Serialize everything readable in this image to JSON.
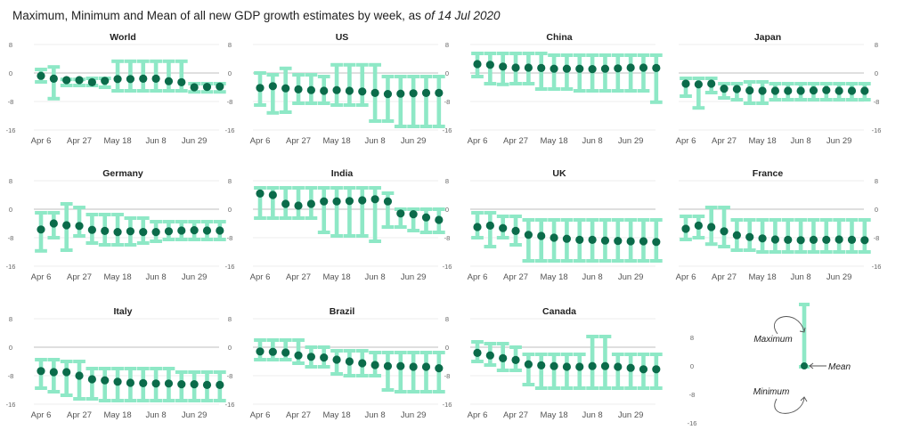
{
  "title": {
    "main": "Maximum, Minimum and Mean of all new GDP growth estimates by week, as ",
    "asof": "of 14 Jul 2020"
  },
  "colors": {
    "range": "#8ee8c6",
    "mean": "#0b6b4a",
    "grid": "#dddddd",
    "axis": "#aaaaaa"
  },
  "legend": {
    "maximum": "Maximum",
    "minimum": "Minimum",
    "mean": "Mean"
  },
  "chart_data": {
    "type": "scatter",
    "description_of_series": [
      "Mean",
      "Maximum",
      "Minimum"
    ],
    "ylim": [
      -16,
      8
    ],
    "yticks": [
      "8",
      "0",
      "-8",
      "-16"
    ],
    "xticks": [
      "Apr 6",
      "Apr 27",
      "May 18",
      "Jun 8",
      "Jun 29"
    ],
    "x": [
      "Apr 6",
      "Apr 13",
      "Apr 20",
      "Apr 27",
      "May 4",
      "May 11",
      "May 18",
      "May 25",
      "Jun 1",
      "Jun 8",
      "Jun 15",
      "Jun 22",
      "Jun 29",
      "Jul 6",
      "Jul 13"
    ],
    "panels": [
      {
        "name": "World",
        "mean": [
          -0.8,
          -1.6,
          -2.0,
          -2.0,
          -2.6,
          -2.2,
          -1.7,
          -1.7,
          -1.6,
          -1.6,
          -2.3,
          -2.6,
          -4.0,
          -3.9,
          -3.8
        ],
        "max": [
          1.0,
          1.7,
          -1.8,
          -1.8,
          -1.5,
          -1.5,
          3.3,
          3.3,
          3.3,
          3.3,
          3.3,
          3.3,
          -3.0,
          -3.0,
          -3.0
        ],
        "min": [
          -2.5,
          -7.2,
          -3.5,
          -3.5,
          -3.5,
          -4.0,
          -5.0,
          -5.0,
          -5.0,
          -5.0,
          -5.0,
          -5.0,
          -5.3,
          -5.3,
          -5.3
        ]
      },
      {
        "name": "US",
        "mean": [
          -4.2,
          -3.7,
          -4.3,
          -4.6,
          -4.8,
          -5.0,
          -4.8,
          -5.0,
          -5.2,
          -5.6,
          -5.9,
          -5.8,
          -5.7,
          -5.6,
          -5.6
        ],
        "max": [
          0.0,
          -0.5,
          1.3,
          -0.5,
          -0.5,
          -1.0,
          2.3,
          2.3,
          2.3,
          2.3,
          -1.0,
          -1.0,
          -1.0,
          -1.0,
          -1.0
        ],
        "min": [
          -9.0,
          -11.2,
          -11.0,
          -8.5,
          -8.5,
          -8.5,
          -9.0,
          -9.0,
          -9.0,
          -13.5,
          -13.5,
          -15.0,
          -15.0,
          -15.0,
          -15.0
        ]
      },
      {
        "name": "China",
        "mean": [
          2.5,
          2.3,
          1.8,
          1.5,
          1.5,
          1.4,
          1.2,
          1.2,
          1.2,
          1.1,
          1.2,
          1.3,
          1.5,
          1.5,
          1.4
        ],
        "max": [
          5.5,
          5.5,
          5.5,
          5.5,
          5.5,
          5.5,
          5.0,
          5.0,
          5.0,
          5.0,
          5.0,
          5.0,
          5.0,
          5.0,
          5.0
        ],
        "min": [
          -1.0,
          -3.0,
          -3.2,
          -3.0,
          -3.0,
          -4.5,
          -4.5,
          -4.5,
          -5.0,
          -5.0,
          -5.0,
          -5.0,
          -5.0,
          -5.0,
          -8.2
        ]
      },
      {
        "name": "Japan",
        "mean": [
          -3.0,
          -3.2,
          -3.0,
          -4.4,
          -4.5,
          -4.9,
          -5.0,
          -5.0,
          -5.0,
          -5.0,
          -4.9,
          -4.8,
          -5.0,
          -5.0,
          -5.0
        ],
        "max": [
          -1.5,
          -1.5,
          -1.5,
          -3.0,
          -3.0,
          -2.5,
          -2.5,
          -3.0,
          -3.0,
          -3.0,
          -3.0,
          -3.0,
          -3.0,
          -3.0,
          -3.0
        ],
        "min": [
          -6.5,
          -9.8,
          -5.5,
          -7.0,
          -7.5,
          -8.5,
          -8.5,
          -7.5,
          -7.5,
          -7.5,
          -7.5,
          -7.5,
          -7.5,
          -7.5,
          -7.5
        ]
      },
      {
        "name": "Germany",
        "mean": [
          -5.7,
          -4.0,
          -4.5,
          -4.7,
          -5.8,
          -6.1,
          -6.4,
          -6.2,
          -6.4,
          -6.4,
          -6.2,
          -6.0,
          -5.9,
          -6.0,
          -6.0
        ],
        "max": [
          -1.0,
          -1.0,
          1.5,
          0.5,
          -1.5,
          -1.5,
          -1.5,
          -2.5,
          -2.5,
          -3.5,
          -3.5,
          -3.5,
          -3.5,
          -3.5,
          -3.5
        ],
        "min": [
          -11.7,
          -8.0,
          -11.5,
          -7.5,
          -9.5,
          -10.0,
          -10.0,
          -10.0,
          -9.5,
          -9.0,
          -8.5,
          -8.5,
          -8.5,
          -8.5,
          -8.5
        ]
      },
      {
        "name": "India",
        "mean": [
          4.4,
          4.0,
          1.5,
          1.0,
          1.5,
          2.2,
          2.2,
          2.3,
          2.5,
          2.8,
          2.2,
          -1.2,
          -1.4,
          -2.3,
          -3.0
        ],
        "max": [
          6.0,
          6.0,
          6.0,
          6.0,
          6.0,
          6.0,
          6.0,
          6.0,
          6.0,
          6.0,
          4.5,
          0.0,
          0.0,
          0.0,
          0.0
        ],
        "min": [
          -2.5,
          -2.5,
          -2.5,
          -2.5,
          -2.5,
          -6.5,
          -7.5,
          -7.5,
          -7.5,
          -9.0,
          -5.0,
          -5.0,
          -6.0,
          -6.5,
          -6.5
        ]
      },
      {
        "name": "UK",
        "mean": [
          -5.0,
          -4.6,
          -5.3,
          -6.1,
          -7.2,
          -7.5,
          -8.0,
          -8.3,
          -8.6,
          -8.6,
          -8.8,
          -8.9,
          -9.0,
          -9.0,
          -9.2
        ],
        "max": [
          -1.0,
          -1.0,
          -2.0,
          -2.0,
          -3.0,
          -3.0,
          -3.0,
          -3.0,
          -3.0,
          -3.0,
          -3.0,
          -3.0,
          -3.0,
          -3.0,
          -3.0
        ],
        "min": [
          -8.0,
          -10.5,
          -8.0,
          -10.0,
          -14.5,
          -14.5,
          -14.5,
          -14.5,
          -14.5,
          -14.5,
          -14.5,
          -14.5,
          -14.5,
          -14.5,
          -14.5
        ]
      },
      {
        "name": "France",
        "mean": [
          -5.5,
          -4.6,
          -5.0,
          -6.2,
          -7.3,
          -7.8,
          -8.2,
          -8.5,
          -8.6,
          -8.7,
          -8.6,
          -8.6,
          -8.5,
          -8.6,
          -8.7
        ],
        "max": [
          -2.0,
          -2.0,
          0.5,
          0.5,
          -3.0,
          -3.0,
          -3.0,
          -3.0,
          -3.0,
          -3.0,
          -3.0,
          -3.0,
          -3.0,
          -3.0,
          -3.0
        ],
        "min": [
          -8.5,
          -8.0,
          -9.8,
          -10.5,
          -11.5,
          -11.5,
          -12.0,
          -12.0,
          -12.0,
          -12.0,
          -12.0,
          -12.0,
          -12.0,
          -12.0,
          -12.0
        ]
      },
      {
        "name": "Italy",
        "mean": [
          -6.7,
          -7.0,
          -7.0,
          -8.0,
          -9.0,
          -9.3,
          -9.7,
          -10.0,
          -10.1,
          -10.2,
          -10.2,
          -10.4,
          -10.4,
          -10.6,
          -10.6
        ],
        "max": [
          -3.5,
          -3.5,
          -4.0,
          -4.0,
          -6.0,
          -6.0,
          -6.0,
          -6.0,
          -6.0,
          -6.0,
          -6.0,
          -7.0,
          -7.0,
          -7.0,
          -7.0
        ],
        "min": [
          -11.5,
          -12.5,
          -13.5,
          -14.5,
          -14.5,
          -15.0,
          -15.0,
          -15.0,
          -15.0,
          -15.0,
          -15.0,
          -15.0,
          -15.0,
          -15.0,
          -15.0
        ]
      },
      {
        "name": "Brazil",
        "mean": [
          -1.2,
          -1.3,
          -1.5,
          -2.3,
          -2.7,
          -2.9,
          -3.5,
          -4.0,
          -4.5,
          -5.0,
          -5.3,
          -5.3,
          -5.5,
          -5.5,
          -5.9
        ],
        "max": [
          2.0,
          2.0,
          2.0,
          2.0,
          0.0,
          0.0,
          -1.0,
          -1.0,
          -1.0,
          -1.5,
          -1.5,
          -1.5,
          -1.5,
          -1.5,
          -1.5
        ],
        "min": [
          -3.5,
          -3.5,
          -3.5,
          -4.5,
          -5.5,
          -5.5,
          -7.5,
          -8.0,
          -8.0,
          -8.0,
          -12.0,
          -12.5,
          -12.5,
          -12.5,
          -12.5
        ]
      },
      {
        "name": "Canada",
        "mean": [
          -1.6,
          -2.3,
          -3.1,
          -3.6,
          -4.8,
          -5.1,
          -5.3,
          -5.5,
          -5.5,
          -5.3,
          -5.3,
          -5.5,
          -5.8,
          -6.2,
          -6.2
        ],
        "max": [
          1.5,
          1.0,
          1.0,
          0.0,
          -2.0,
          -2.0,
          -2.0,
          -2.0,
          -2.0,
          3.0,
          3.0,
          -2.0,
          -2.0,
          -2.0,
          -2.0
        ],
        "min": [
          -4.0,
          -5.0,
          -6.5,
          -6.5,
          -10.5,
          -11.5,
          -11.5,
          -11.5,
          -11.5,
          -11.5,
          -11.5,
          -11.5,
          -11.5,
          -11.5,
          -11.5
        ]
      }
    ]
  }
}
